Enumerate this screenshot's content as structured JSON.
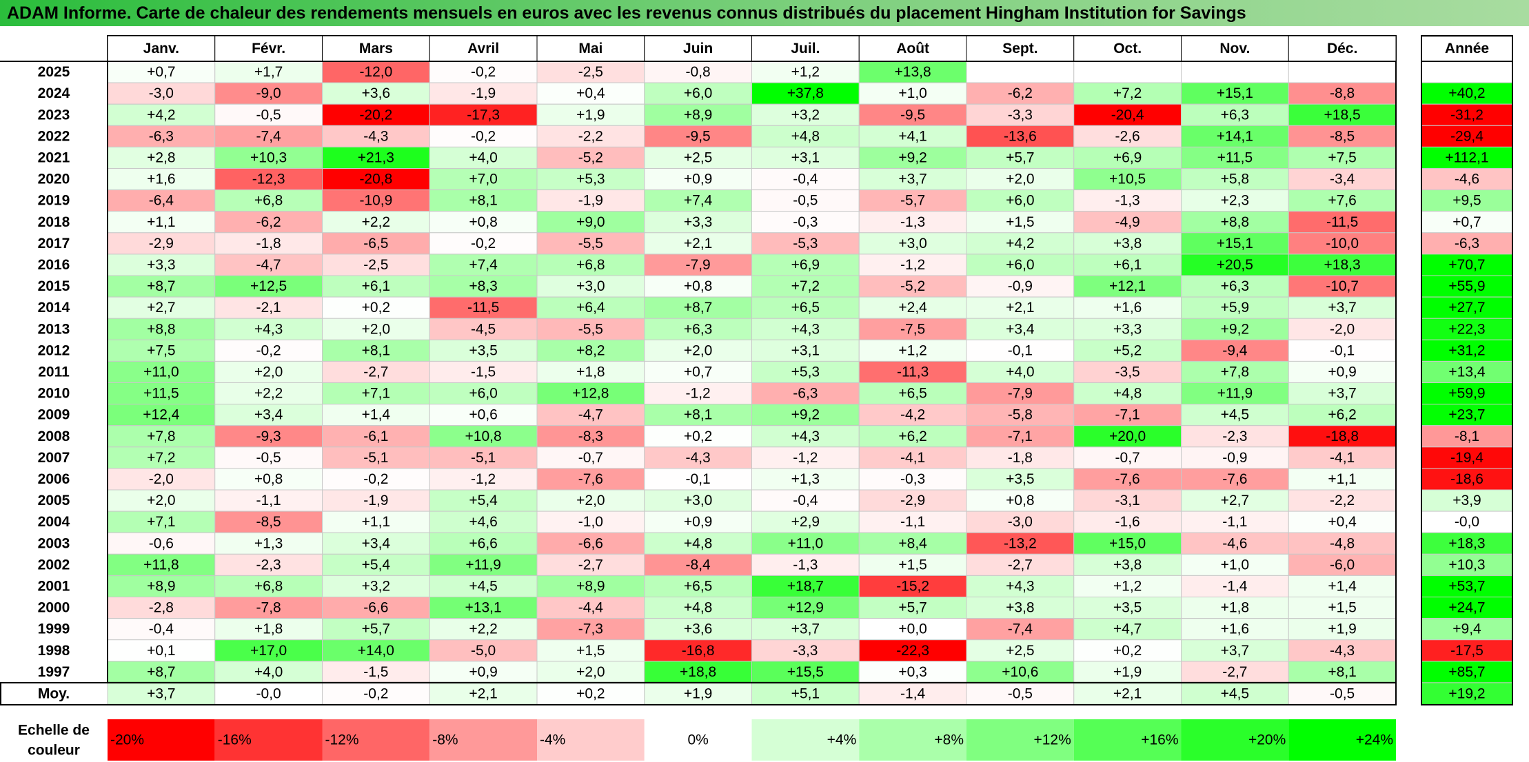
{
  "title": "ADAM Informe. Carte de chaleur des rendements mensuels en euros avec les revenus connus distribués du placement Hingham Institution for Savings",
  "colors": {
    "negative_max": "#ff0000",
    "positive_max": "#00ff00",
    "neutral": "#ffffff",
    "title_bar": "#4cc860"
  },
  "chart_data": {
    "type": "heatmap",
    "value_unit": "%",
    "color_scale": {
      "min": -20,
      "max": 24,
      "center": 0
    },
    "columns": [
      "Janv.",
      "Févr.",
      "Mars",
      "Avril",
      "Mai",
      "Juin",
      "Juil.",
      "Août",
      "Sept.",
      "Oct.",
      "Nov.",
      "Déc."
    ],
    "year_column_label": "Année",
    "average_row_label": "Moy.",
    "rows": [
      {
        "year": "2025",
        "values": [
          "+0,7",
          "+1,7",
          "-12,0",
          "-0,2",
          "-2,5",
          "-0,8",
          "+1,2",
          "+13,8",
          null,
          null,
          null,
          null
        ],
        "annual": null
      },
      {
        "year": "2024",
        "values": [
          "-3,0",
          "-9,0",
          "+3,6",
          "-1,9",
          "+0,4",
          "+6,0",
          "+37,8",
          "+1,0",
          "-6,2",
          "+7,2",
          "+15,1",
          "-8,8"
        ],
        "annual": "+40,2"
      },
      {
        "year": "2023",
        "values": [
          "+4,2",
          "-0,5",
          "-20,2",
          "-17,3",
          "+1,9",
          "+8,9",
          "+3,2",
          "-9,5",
          "-3,3",
          "-20,4",
          "+6,3",
          "+18,5"
        ],
        "annual": "-31,2"
      },
      {
        "year": "2022",
        "values": [
          "-6,3",
          "-7,4",
          "-4,3",
          "-0,2",
          "-2,2",
          "-9,5",
          "+4,8",
          "+4,1",
          "-13,6",
          "-2,6",
          "+14,1",
          "-8,5"
        ],
        "annual": "-29,4"
      },
      {
        "year": "2021",
        "values": [
          "+2,8",
          "+10,3",
          "+21,3",
          "+4,0",
          "-5,2",
          "+2,5",
          "+3,1",
          "+9,2",
          "+5,7",
          "+6,9",
          "+11,5",
          "+7,5"
        ],
        "annual": "+112,1"
      },
      {
        "year": "2020",
        "values": [
          "+1,6",
          "-12,3",
          "-20,8",
          "+7,0",
          "+5,3",
          "+0,9",
          "-0,4",
          "+3,7",
          "+2,0",
          "+10,5",
          "+5,8",
          "-3,4"
        ],
        "annual": "-4,6"
      },
      {
        "year": "2019",
        "values": [
          "-6,4",
          "+6,8",
          "-10,9",
          "+8,1",
          "-1,9",
          "+7,4",
          "-0,5",
          "-5,7",
          "+6,0",
          "-1,3",
          "+2,3",
          "+7,6"
        ],
        "annual": "+9,5"
      },
      {
        "year": "2018",
        "values": [
          "+1,1",
          "-6,2",
          "+2,2",
          "+0,8",
          "+9,0",
          "+3,3",
          "-0,3",
          "-1,3",
          "+1,5",
          "-4,9",
          "+8,8",
          "-11,5"
        ],
        "annual": "+0,7"
      },
      {
        "year": "2017",
        "values": [
          "-2,9",
          "-1,8",
          "-6,5",
          "-0,2",
          "-5,5",
          "+2,1",
          "-5,3",
          "+3,0",
          "+4,2",
          "+3,8",
          "+15,1",
          "-10,0"
        ],
        "annual": "-6,3"
      },
      {
        "year": "2016",
        "values": [
          "+3,3",
          "-4,7",
          "-2,5",
          "+7,4",
          "+6,8",
          "-7,9",
          "+6,9",
          "-1,2",
          "+6,0",
          "+6,1",
          "+20,5",
          "+18,3"
        ],
        "annual": "+70,7"
      },
      {
        "year": "2015",
        "values": [
          "+8,7",
          "+12,5",
          "+6,1",
          "+8,3",
          "+3,0",
          "+0,8",
          "+7,2",
          "-5,2",
          "-0,9",
          "+12,1",
          "+6,3",
          "-10,7"
        ],
        "annual": "+55,9"
      },
      {
        "year": "2014",
        "values": [
          "+2,7",
          "-2,1",
          "+0,2",
          "-11,5",
          "+6,4",
          "+8,7",
          "+6,5",
          "+2,4",
          "+2,1",
          "+1,6",
          "+5,9",
          "+3,7"
        ],
        "annual": "+27,7"
      },
      {
        "year": "2013",
        "values": [
          "+8,8",
          "+4,3",
          "+2,0",
          "-4,5",
          "-5,5",
          "+6,3",
          "+4,3",
          "-7,5",
          "+3,4",
          "+3,3",
          "+9,2",
          "-2,0"
        ],
        "annual": "+22,3"
      },
      {
        "year": "2012",
        "values": [
          "+7,5",
          "-0,2",
          "+8,1",
          "+3,5",
          "+8,2",
          "+2,0",
          "+3,1",
          "+1,2",
          "-0,1",
          "+5,2",
          "-9,4",
          "-0,1"
        ],
        "annual": "+31,2"
      },
      {
        "year": "2011",
        "values": [
          "+11,0",
          "+2,0",
          "-2,7",
          "-1,5",
          "+1,8",
          "+0,7",
          "+5,3",
          "-11,3",
          "+4,0",
          "-3,5",
          "+7,8",
          "+0,9"
        ],
        "annual": "+13,4"
      },
      {
        "year": "2010",
        "values": [
          "+11,5",
          "+2,2",
          "+7,1",
          "+6,0",
          "+12,8",
          "-1,2",
          "-6,3",
          "+6,5",
          "-7,9",
          "+4,8",
          "+11,9",
          "+3,7"
        ],
        "annual": "+59,9"
      },
      {
        "year": "2009",
        "values": [
          "+12,4",
          "+3,4",
          "+1,4",
          "+0,6",
          "-4,7",
          "+8,1",
          "+9,2",
          "-4,2",
          "-5,8",
          "-7,1",
          "+4,5",
          "+6,2"
        ],
        "annual": "+23,7"
      },
      {
        "year": "2008",
        "values": [
          "+7,8",
          "-9,3",
          "-6,1",
          "+10,8",
          "-8,3",
          "+0,2",
          "+4,3",
          "+6,2",
          "-7,1",
          "+20,0",
          "-2,3",
          "-18,8"
        ],
        "annual": "-8,1"
      },
      {
        "year": "2007",
        "values": [
          "+7,2",
          "-0,5",
          "-5,1",
          "-5,1",
          "-0,7",
          "-4,3",
          "-1,2",
          "-4,1",
          "-1,8",
          "-0,7",
          "-0,9",
          "-4,1"
        ],
        "annual": "-19,4"
      },
      {
        "year": "2006",
        "values": [
          "-2,0",
          "+0,8",
          "-0,2",
          "-1,2",
          "-7,6",
          "-0,1",
          "+1,3",
          "-0,3",
          "+3,5",
          "-7,6",
          "-7,6",
          "+1,1"
        ],
        "annual": "-18,6"
      },
      {
        "year": "2005",
        "values": [
          "+2,0",
          "-1,1",
          "-1,9",
          "+5,4",
          "+2,0",
          "+3,0",
          "-0,4",
          "-2,9",
          "+0,8",
          "-3,1",
          "+2,7",
          "-2,2"
        ],
        "annual": "+3,9"
      },
      {
        "year": "2004",
        "values": [
          "+7,1",
          "-8,5",
          "+1,1",
          "+4,6",
          "-1,0",
          "+0,9",
          "+2,9",
          "-1,1",
          "-3,0",
          "-1,6",
          "-1,1",
          "+0,4"
        ],
        "annual": "-0,0"
      },
      {
        "year": "2003",
        "values": [
          "-0,6",
          "+1,3",
          "+3,4",
          "+6,6",
          "-6,6",
          "+4,8",
          "+11,0",
          "+8,4",
          "-13,2",
          "+15,0",
          "-4,6",
          "-4,8"
        ],
        "annual": "+18,3"
      },
      {
        "year": "2002",
        "values": [
          "+11,8",
          "-2,3",
          "+5,4",
          "+11,9",
          "-2,7",
          "-8,4",
          "-1,3",
          "+1,5",
          "-2,7",
          "+3,8",
          "+1,0",
          "-6,0"
        ],
        "annual": "+10,3"
      },
      {
        "year": "2001",
        "values": [
          "+8,9",
          "+6,8",
          "+3,2",
          "+4,5",
          "+8,9",
          "+6,5",
          "+18,7",
          "-15,2",
          "+4,3",
          "+1,2",
          "-1,4",
          "+1,4"
        ],
        "annual": "+53,7"
      },
      {
        "year": "2000",
        "values": [
          "-2,8",
          "-7,8",
          "-6,6",
          "+13,1",
          "-4,4",
          "+4,8",
          "+12,9",
          "+5,7",
          "+3,8",
          "+3,5",
          "+1,8",
          "+1,5"
        ],
        "annual": "+24,7"
      },
      {
        "year": "1999",
        "values": [
          "-0,4",
          "+1,8",
          "+5,7",
          "+2,2",
          "-7,3",
          "+3,6",
          "+3,7",
          "+0,0",
          "-7,4",
          "+4,7",
          "+1,6",
          "+1,9"
        ],
        "annual": "+9,4"
      },
      {
        "year": "1998",
        "values": [
          "+0,1",
          "+17,0",
          "+14,0",
          "-5,0",
          "+1,5",
          "-16,8",
          "-3,3",
          "-22,3",
          "+2,5",
          "+0,2",
          "+3,7",
          "-4,3"
        ],
        "annual": "-17,5"
      },
      {
        "year": "1997",
        "values": [
          "+8,7",
          "+4,0",
          "-1,5",
          "+0,9",
          "+2,0",
          "+18,8",
          "+15,5",
          "+0,3",
          "+10,6",
          "+1,9",
          "-2,7",
          "+8,1"
        ],
        "annual": "+85,7"
      }
    ],
    "average": {
      "values": [
        "+3,7",
        "-0,0",
        "-0,2",
        "+2,1",
        "+0,2",
        "+1,9",
        "+5,1",
        "-1,4",
        "-0,5",
        "+2,1",
        "+4,5",
        "-0,5"
      ],
      "annual": "+19,2"
    },
    "legend": {
      "label_line1": "Echelle de",
      "label_line2": "couleur",
      "items": [
        {
          "label": "-20%",
          "value": -20
        },
        {
          "label": "-16%",
          "value": -16
        },
        {
          "label": "-12%",
          "value": -12
        },
        {
          "label": "-8%",
          "value": -8
        },
        {
          "label": "-4%",
          "value": -4
        },
        {
          "label": "0%",
          "value": 0
        },
        {
          "label": "+4%",
          "value": 4
        },
        {
          "label": "+8%",
          "value": 8
        },
        {
          "label": "+12%",
          "value": 12
        },
        {
          "label": "+16%",
          "value": 16
        },
        {
          "label": "+20%",
          "value": 20
        },
        {
          "label": "+24%",
          "value": 24
        }
      ]
    }
  }
}
